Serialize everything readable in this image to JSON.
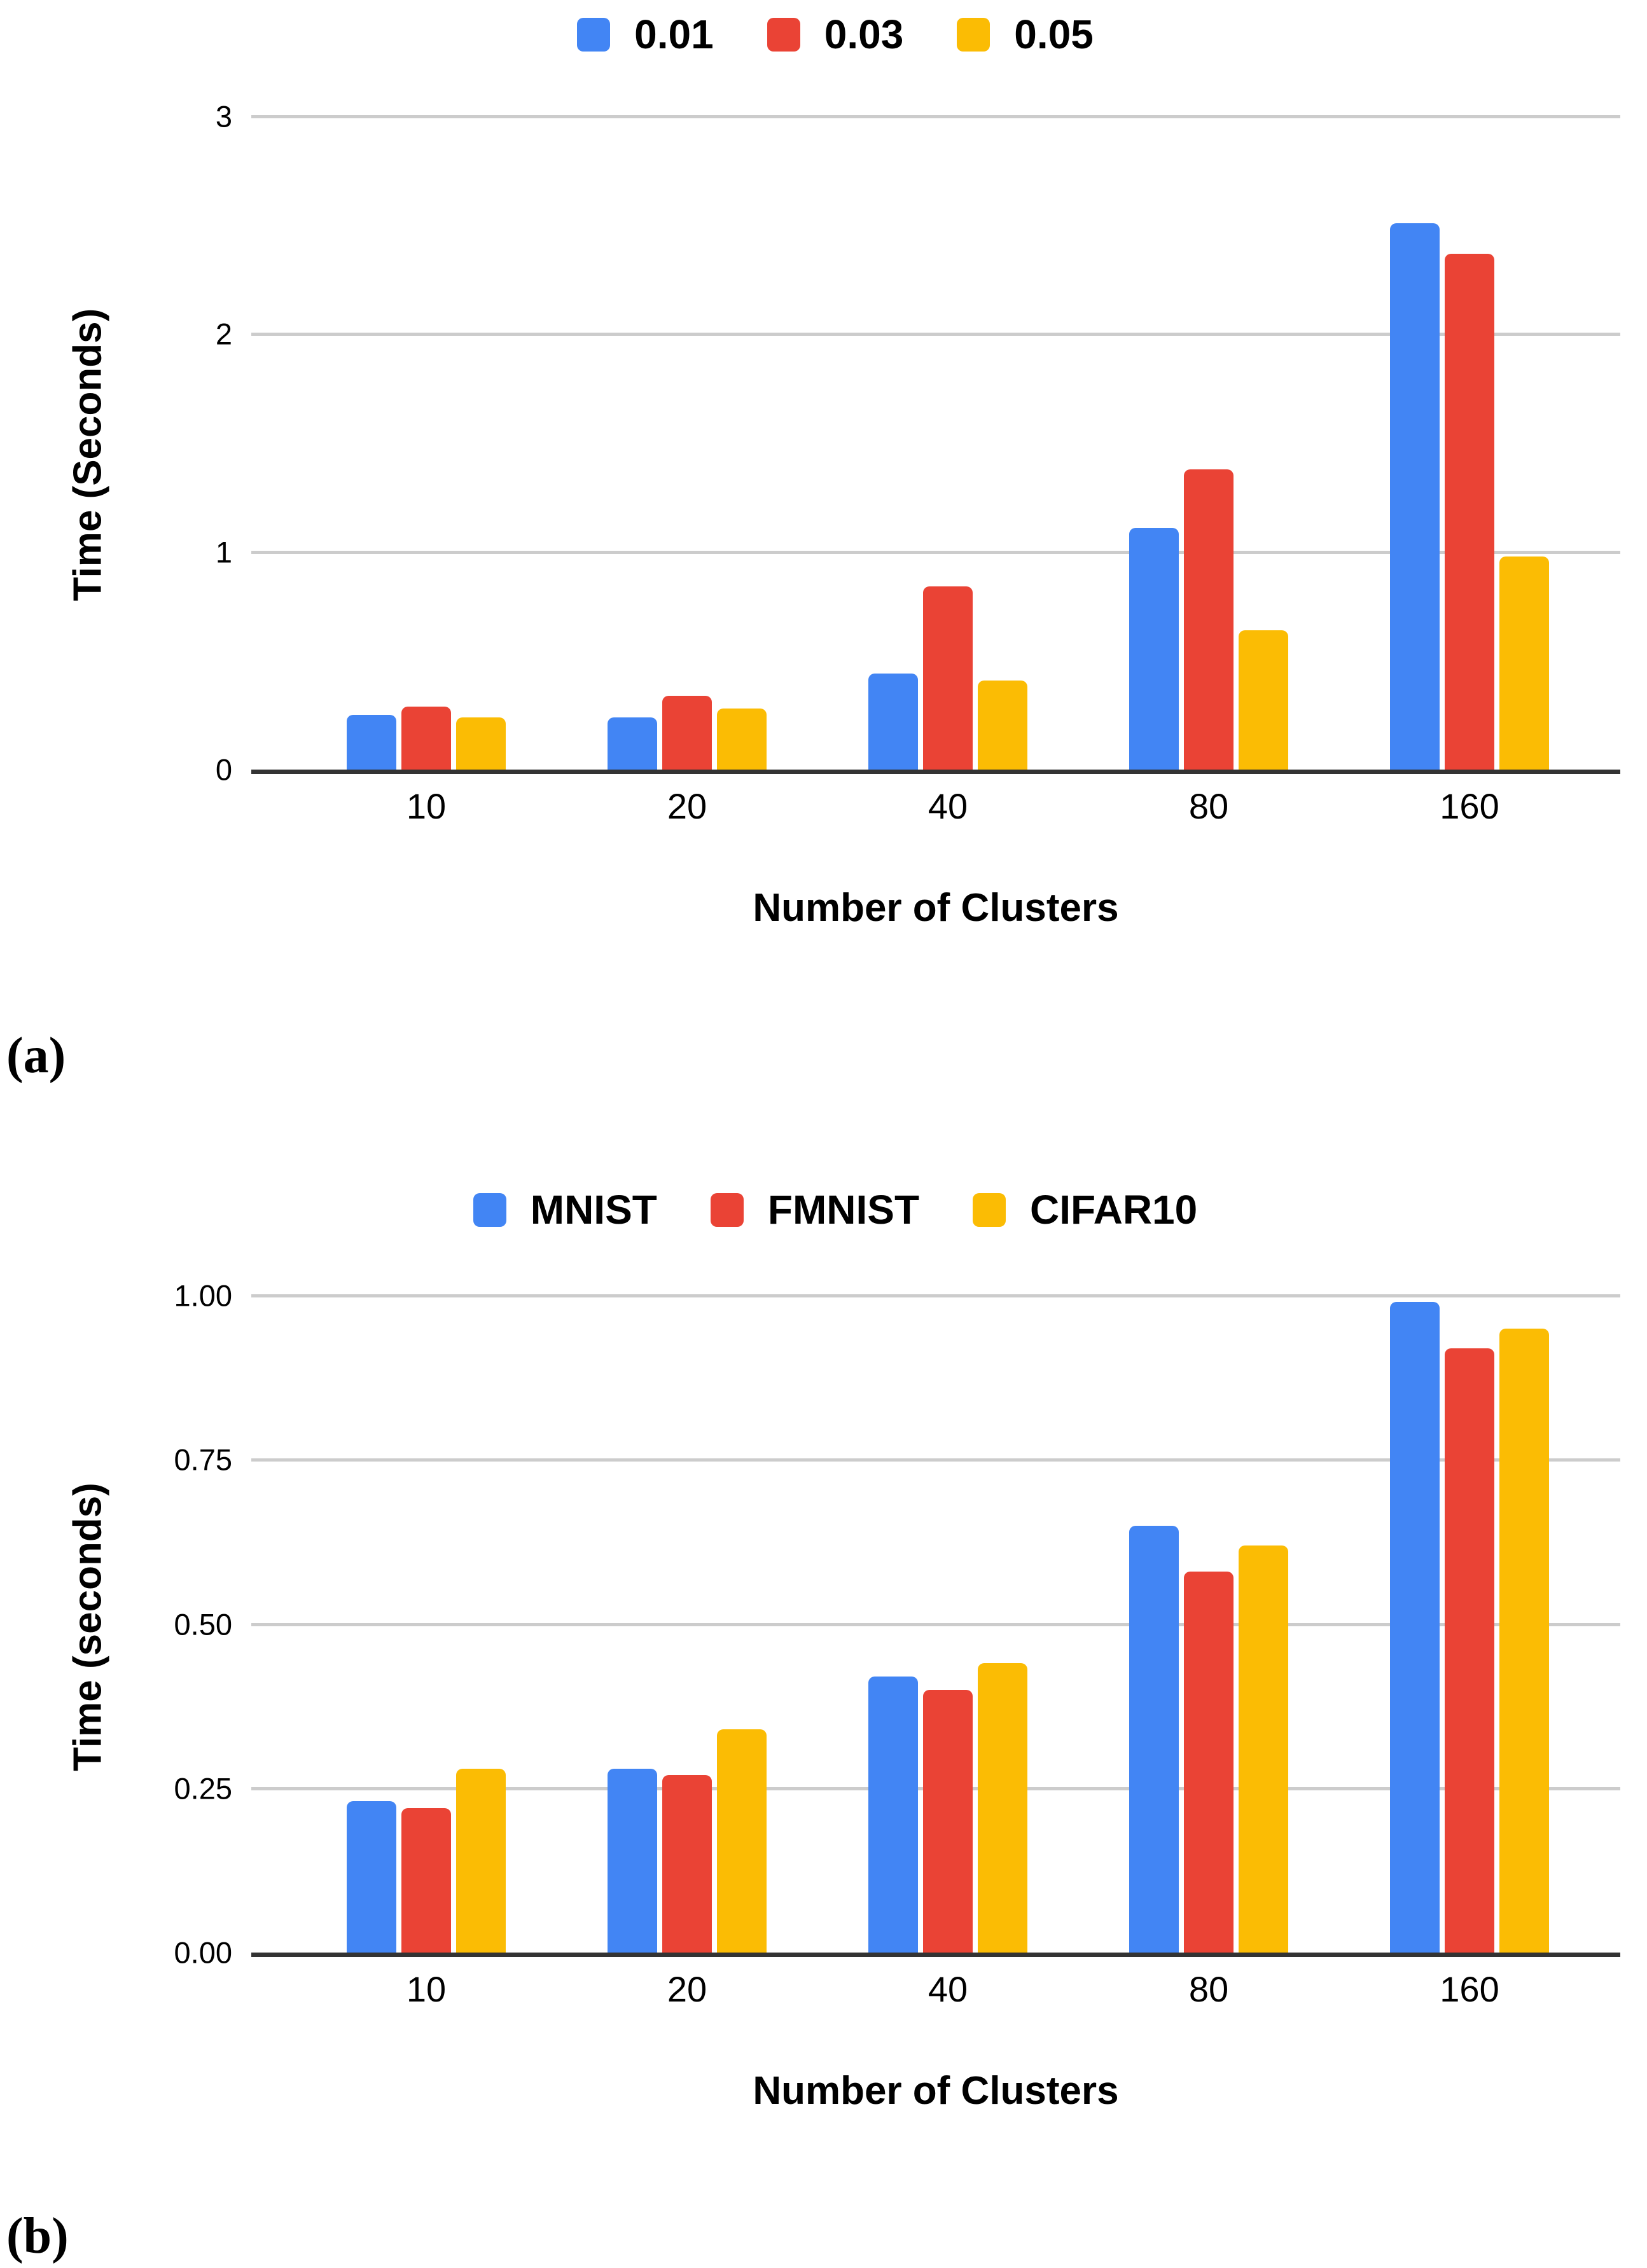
{
  "figure_labels": {
    "a": "(a)",
    "b": "(b)"
  },
  "colors": {
    "series_blue": "#4285F4",
    "series_red": "#EA4335",
    "series_yellow": "#FBBC04",
    "gridline": "#cccccc",
    "axis_line": "#333333",
    "text": "#000000",
    "background": "#ffffff"
  },
  "chart_data": [
    {
      "id": "a",
      "type": "bar",
      "title": "",
      "xlabel": "Number of Clusters",
      "ylabel": "Time (Seconds)",
      "categories": [
        "10",
        "20",
        "40",
        "80",
        "160"
      ],
      "series": [
        {
          "name": "0.01",
          "color": "#4285F4",
          "values": [
            0.25,
            0.24,
            0.44,
            1.11,
            2.51
          ]
        },
        {
          "name": "0.03",
          "color": "#EA4335",
          "values": [
            0.29,
            0.34,
            0.84,
            1.38,
            2.37
          ]
        },
        {
          "name": "0.05",
          "color": "#FBBC04",
          "values": [
            0.24,
            0.28,
            0.41,
            0.64,
            0.98
          ]
        }
      ],
      "ylim": [
        0,
        3
      ],
      "yticks": [
        {
          "label": "0",
          "value": 0
        },
        {
          "label": "1",
          "value": 1
        },
        {
          "label": "2",
          "value": 2
        },
        {
          "label": "3",
          "value": 3
        }
      ],
      "grid": true,
      "legend_position": "top"
    },
    {
      "id": "b",
      "type": "bar",
      "title": "",
      "xlabel": "Number of Clusters",
      "ylabel": "Time (seconds)",
      "categories": [
        "10",
        "20",
        "40",
        "80",
        "160"
      ],
      "series": [
        {
          "name": "MNIST",
          "color": "#4285F4",
          "values": [
            0.23,
            0.28,
            0.42,
            0.65,
            0.99
          ]
        },
        {
          "name": "FMNIST",
          "color": "#EA4335",
          "values": [
            0.22,
            0.27,
            0.4,
            0.58,
            0.92
          ]
        },
        {
          "name": "CIFAR10",
          "color": "#FBBC04",
          "values": [
            0.28,
            0.34,
            0.44,
            0.62,
            0.95
          ]
        }
      ],
      "ylim": [
        0,
        1
      ],
      "yticks": [
        {
          "label": "0.00",
          "value": 0
        },
        {
          "label": "0.25",
          "value": 0.25
        },
        {
          "label": "0.50",
          "value": 0.5
        },
        {
          "label": "0.75",
          "value": 0.75
        },
        {
          "label": "1.00",
          "value": 1
        }
      ],
      "grid": true,
      "legend_position": "top"
    }
  ]
}
